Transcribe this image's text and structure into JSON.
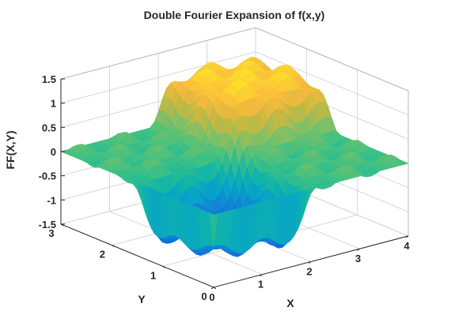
{
  "chart_data": {
    "type": "surface",
    "title": "Double Fourier Expansion of f(x,y)",
    "xlabel": "X",
    "ylabel": "Y",
    "zlabel": "FF(X,Y)",
    "xlim": [
      0,
      4
    ],
    "ylim": [
      0,
      3
    ],
    "zlim": [
      -1.5,
      1.5
    ],
    "xticks": [
      0,
      1,
      2,
      3,
      4
    ],
    "yticks": [
      0,
      1,
      2,
      3
    ],
    "zticks": [
      -1.5,
      -1,
      -0.5,
      0,
      0.5,
      1,
      1.5
    ],
    "zticklabels": [
      "-1.5",
      "-1",
      "-0.5",
      "0",
      "0.5",
      "1",
      "1.5"
    ],
    "grid": true,
    "colormap": "parula",
    "surface": {
      "description_values": {
        "plateau_high": 1.2,
        "plateau_low": -1.2,
        "boundary_value": 0
      }
    }
  }
}
